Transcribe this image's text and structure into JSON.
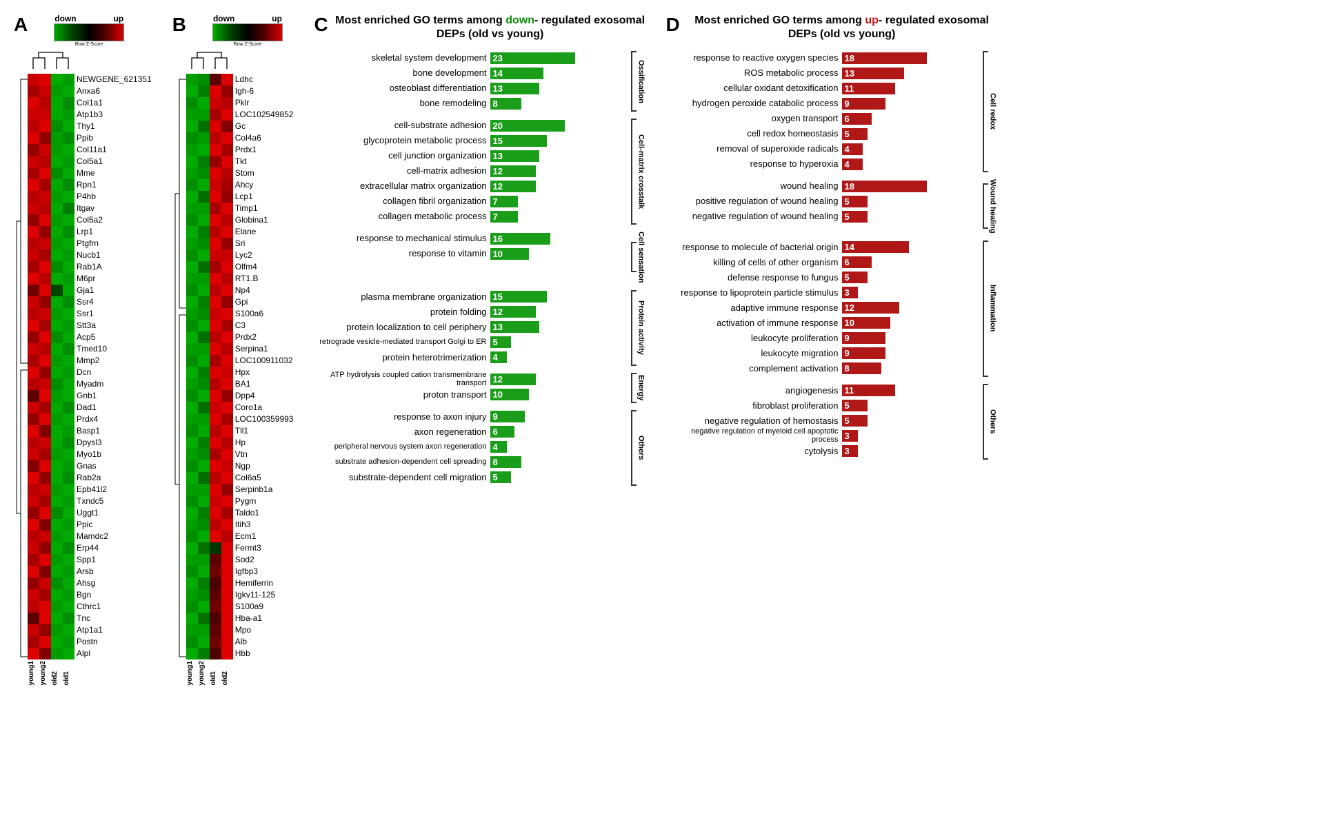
{
  "colors": {
    "heatmap_low": "#00aa00",
    "heatmap_mid": "#000000",
    "heatmap_high": "#dd0000",
    "bar_down": "#1a9e1a",
    "bar_up": "#b01818",
    "background": "#ffffff",
    "text": "#000000"
  },
  "panel_labels": {
    "A": "A",
    "B": "B",
    "C": "C",
    "D": "D"
  },
  "color_key": {
    "down_label": "down",
    "up_label": "up",
    "axis_label": "Row Z-Score",
    "ticks": [
      "-1",
      "-0.5",
      "0",
      "0.5",
      "1"
    ]
  },
  "heatmap_A": {
    "samples": [
      "young1",
      "young2",
      "old2",
      "old1"
    ],
    "genes": [
      "NEWGENE_621351",
      "Anxa6",
      "Col1a1",
      "Atp1b3",
      "Thy1",
      "Ppib",
      "Col11a1",
      "Col5a1",
      "Mme",
      "Rpn1",
      "P4hb",
      "Itgav",
      "Col5a2",
      "Lrp1",
      "Ptgfrn",
      "Nucb1",
      "Rab1A",
      "M6pr",
      "Gja1",
      "Ssr4",
      "Ssr1",
      "Stt3a",
      "Acp5",
      "Tmed10",
      "Mmp2",
      "Dcn",
      "Myadm",
      "Gnb1",
      "Dad1",
      "Prdx4",
      "Basp1",
      "Dpysl3",
      "Myo1b",
      "Gnas",
      "Rab2a",
      "Epb41l2",
      "Txndc5",
      "Uggt1",
      "Ppic",
      "Mamdc2",
      "Erp44",
      "Spp1",
      "Arsb",
      "Ahsg",
      "Bgn",
      "Cthrc1",
      "Tnc",
      "Atp1a1",
      "Postn",
      "Alpl"
    ],
    "values": [
      [
        0.9,
        1.0,
        -1.0,
        -0.9
      ],
      [
        0.7,
        0.9,
        -0.9,
        -1.0
      ],
      [
        1.0,
        0.8,
        -1.0,
        -0.8
      ],
      [
        0.9,
        0.9,
        -1.0,
        -0.9
      ],
      [
        0.8,
        1.0,
        -0.8,
        -1.0
      ],
      [
        1.0,
        0.6,
        -0.9,
        -0.8
      ],
      [
        0.6,
        0.9,
        -0.9,
        -1.0
      ],
      [
        0.9,
        0.8,
        -1.0,
        -0.9
      ],
      [
        0.7,
        1.0,
        -0.8,
        -1.0
      ],
      [
        1.0,
        0.7,
        -1.0,
        -0.8
      ],
      [
        0.8,
        0.9,
        -0.9,
        -1.0
      ],
      [
        0.9,
        0.8,
        -1.0,
        -0.7
      ],
      [
        0.6,
        1.0,
        -0.9,
        -1.0
      ],
      [
        1.0,
        0.6,
        -1.0,
        -0.8
      ],
      [
        0.8,
        0.9,
        -0.9,
        -1.0
      ],
      [
        0.9,
        0.7,
        -1.0,
        -0.9
      ],
      [
        0.7,
        1.0,
        -0.8,
        -1.0
      ],
      [
        1.0,
        0.8,
        -1.0,
        -0.9
      ],
      [
        0.4,
        1.0,
        -0.3,
        -1.0
      ],
      [
        0.9,
        0.6,
        -1.0,
        -0.8
      ],
      [
        0.8,
        0.9,
        -0.9,
        -1.0
      ],
      [
        1.0,
        0.7,
        -1.0,
        -0.9
      ],
      [
        0.6,
        1.0,
        -0.8,
        -1.0
      ],
      [
        0.9,
        0.8,
        -1.0,
        -0.8
      ],
      [
        0.7,
        1.0,
        -0.9,
        -1.0
      ],
      [
        1.0,
        0.6,
        -1.0,
        -0.9
      ],
      [
        0.8,
        0.9,
        -0.8,
        -1.0
      ],
      [
        0.3,
        1.0,
        -0.9,
        -1.0
      ],
      [
        0.9,
        0.7,
        -1.0,
        -0.8
      ],
      [
        0.6,
        1.0,
        -0.9,
        -1.0
      ],
      [
        1.0,
        0.5,
        -1.0,
        -0.9
      ],
      [
        0.8,
        0.9,
        -1.0,
        -0.8
      ],
      [
        0.9,
        0.7,
        -0.9,
        -1.0
      ],
      [
        0.5,
        1.0,
        -1.0,
        -0.9
      ],
      [
        1.0,
        0.6,
        -1.0,
        -0.8
      ],
      [
        0.8,
        0.9,
        -0.9,
        -1.0
      ],
      [
        0.9,
        0.7,
        -1.0,
        -0.9
      ],
      [
        0.6,
        1.0,
        -0.8,
        -1.0
      ],
      [
        1.0,
        0.5,
        -1.0,
        -0.9
      ],
      [
        0.8,
        0.9,
        -0.9,
        -1.0
      ],
      [
        0.9,
        0.6,
        -1.0,
        -0.8
      ],
      [
        0.7,
        1.0,
        -0.9,
        -1.0
      ],
      [
        1.0,
        0.5,
        -1.0,
        -0.9
      ],
      [
        0.6,
        0.9,
        -0.8,
        -1.0
      ],
      [
        0.9,
        0.7,
        -1.0,
        -0.9
      ],
      [
        0.8,
        1.0,
        -0.9,
        -1.0
      ],
      [
        0.3,
        1.0,
        -1.0,
        -0.8
      ],
      [
        0.9,
        0.6,
        -0.9,
        -1.0
      ],
      [
        0.7,
        1.0,
        -1.0,
        -0.9
      ],
      [
        1.0,
        0.5,
        -0.9,
        -1.0
      ]
    ]
  },
  "heatmap_B": {
    "samples": [
      "young1",
      "young2",
      "old1",
      "old2"
    ],
    "genes": [
      "Ldhc",
      "Igh-6",
      "Pklr",
      "LOC102549852",
      "Gc",
      "Col4a6",
      "Prdx1",
      "Tkt",
      "Stom",
      "Ahcy",
      "Lcp1",
      "Timp1",
      "Globina1",
      "Elane",
      "Sri",
      "Lyc2",
      "Olfm4",
      "RT1.B",
      "Np4",
      "Gpi",
      "S100a6",
      "C3",
      "Prdx2",
      "Serpina1",
      "LOC100911032",
      "Hpx",
      "BA1",
      "Dpp4",
      "Coro1a",
      "LOC100359993",
      "Tll1",
      "Hp",
      "Vtn",
      "Ngp",
      "Col6a5",
      "Serpinb1a",
      "Pygm",
      "Taldo1",
      "Itih3",
      "Ecm1",
      "Fermt3",
      "Sod2",
      "Igfbp3",
      "Hemiferrin",
      "Igkv11-125",
      "S100a9",
      "Hba-a1",
      "Mpo",
      "Alb",
      "Hbb"
    ],
    "values": [
      [
        -0.9,
        -0.8,
        0.3,
        1.0
      ],
      [
        -1.0,
        -0.7,
        1.0,
        0.6
      ],
      [
        -0.8,
        -1.0,
        0.9,
        0.8
      ],
      [
        -0.9,
        -0.9,
        0.7,
        1.0
      ],
      [
        -1.0,
        -0.6,
        1.0,
        0.5
      ],
      [
        -0.8,
        -0.9,
        0.8,
        1.0
      ],
      [
        -0.9,
        -1.0,
        1.0,
        0.7
      ],
      [
        -1.0,
        -0.7,
        0.6,
        1.0
      ],
      [
        -0.9,
        -0.8,
        1.0,
        0.8
      ],
      [
        -0.8,
        -1.0,
        0.9,
        0.7
      ],
      [
        -1.0,
        -0.6,
        1.0,
        0.6
      ],
      [
        -0.9,
        -0.9,
        0.7,
        1.0
      ],
      [
        -0.8,
        -1.0,
        1.0,
        0.8
      ],
      [
        -1.0,
        -0.7,
        0.8,
        1.0
      ],
      [
        -0.9,
        -0.8,
        1.0,
        0.6
      ],
      [
        -0.8,
        -1.0,
        0.9,
        0.9
      ],
      [
        -1.0,
        -0.6,
        0.7,
        1.0
      ],
      [
        -0.9,
        -0.9,
        1.0,
        0.8
      ],
      [
        -0.8,
        -1.0,
        0.8,
        1.0
      ],
      [
        -1.0,
        -0.7,
        1.0,
        0.6
      ],
      [
        -0.9,
        -0.8,
        0.9,
        1.0
      ],
      [
        -0.8,
        -1.0,
        1.0,
        0.7
      ],
      [
        -1.0,
        -0.6,
        0.8,
        1.0
      ],
      [
        -0.9,
        -0.9,
        1.0,
        0.8
      ],
      [
        -0.8,
        -1.0,
        0.7,
        1.0
      ],
      [
        -1.0,
        -0.7,
        1.0,
        0.9
      ],
      [
        -0.9,
        -0.8,
        0.8,
        1.0
      ],
      [
        -0.8,
        -1.0,
        1.0,
        0.6
      ],
      [
        -1.0,
        -0.6,
        0.9,
        1.0
      ],
      [
        -0.9,
        -0.9,
        1.0,
        0.7
      ],
      [
        -0.8,
        -1.0,
        0.8,
        1.0
      ],
      [
        -1.0,
        -0.7,
        1.0,
        0.8
      ],
      [
        -0.9,
        -0.8,
        0.7,
        1.0
      ],
      [
        -0.8,
        -1.0,
        1.0,
        0.9
      ],
      [
        -1.0,
        -0.6,
        0.8,
        1.0
      ],
      [
        -0.9,
        -0.9,
        1.0,
        0.6
      ],
      [
        -0.8,
        -1.0,
        0.9,
        1.0
      ],
      [
        -1.0,
        -0.7,
        1.0,
        0.7
      ],
      [
        -0.9,
        -0.8,
        0.8,
        1.0
      ],
      [
        -0.8,
        -1.0,
        1.0,
        0.8
      ],
      [
        -1.0,
        -0.6,
        -0.2,
        1.0
      ],
      [
        -0.9,
        -0.9,
        0.3,
        1.0
      ],
      [
        -0.8,
        -1.0,
        0.4,
        1.0
      ],
      [
        -1.0,
        -0.7,
        0.2,
        1.0
      ],
      [
        -0.9,
        -0.8,
        0.3,
        1.0
      ],
      [
        -0.8,
        -1.0,
        0.4,
        1.0
      ],
      [
        -1.0,
        -0.6,
        0.2,
        1.0
      ],
      [
        -0.9,
        -0.9,
        0.3,
        1.0
      ],
      [
        -0.8,
        -1.0,
        0.4,
        1.0
      ],
      [
        -1.0,
        -0.7,
        0.2,
        1.0
      ]
    ]
  },
  "panel_C": {
    "title_pre": "Most enriched GO terms among ",
    "title_word": "down",
    "title_post": "-\nregulated exosomal DEPs (old vs young)",
    "max_value": 23,
    "groups": [
      {
        "name": "Ossification",
        "bars": [
          {
            "label": "skeletal system development",
            "value": 23
          },
          {
            "label": "bone development",
            "value": 14
          },
          {
            "label": "osteoblast differentiation",
            "value": 13
          },
          {
            "label": "bone remodeling",
            "value": 8
          }
        ]
      },
      {
        "name": "Cell-matrix crosstalk",
        "bars": [
          {
            "label": "cell-substrate adhesion",
            "value": 20
          },
          {
            "label": "glycoprotein metabolic process",
            "value": 15
          },
          {
            "label": "cell junction organization",
            "value": 13
          },
          {
            "label": "cell-matrix adhesion",
            "value": 12
          },
          {
            "label": "extracellular matrix organization",
            "value": 12
          },
          {
            "label": "collagen fibril organization",
            "value": 7
          },
          {
            "label": "collagen metabolic process",
            "value": 7
          }
        ]
      },
      {
        "name": "Cell sensation",
        "bars": [
          {
            "label": "response to mechanical stimulus",
            "value": 16
          },
          {
            "label": "response to vitamin",
            "value": 10
          }
        ]
      },
      {
        "name": "Protein activity",
        "bars": [
          {
            "label": "plasma membrane organization",
            "value": 15
          },
          {
            "label": "protein folding",
            "value": 12
          },
          {
            "label": "protein localization to cell periphery",
            "value": 13
          },
          {
            "label": "retrograde vesicle-mediated transport Golgi to ER",
            "value": 5,
            "small": true
          },
          {
            "label": "protein heterotrimerization",
            "value": 4
          }
        ]
      },
      {
        "name": "Energy",
        "bars": [
          {
            "label": "ATP hydrolysis coupled cation transmembrane transport",
            "value": 12,
            "small": true
          },
          {
            "label": "proton transport",
            "value": 10
          }
        ]
      },
      {
        "name": "Others",
        "bars": [
          {
            "label": "response to axon injury",
            "value": 9
          },
          {
            "label": "axon regeneration",
            "value": 6
          },
          {
            "label": "peripheral nervous system axon regeneration",
            "value": 4,
            "small": true
          },
          {
            "label": "substrate adhesion-dependent cell spreading",
            "value": 8,
            "small": true
          },
          {
            "label": "substrate-dependent cell migration",
            "value": 5
          }
        ]
      }
    ]
  },
  "panel_D": {
    "title_pre": "Most enriched GO terms among ",
    "title_word": "up",
    "title_post": "-\nregulated exosomal DEPs (old vs young)",
    "max_value": 18,
    "groups": [
      {
        "name": "Cell redox",
        "bars": [
          {
            "label": "response to reactive oxygen species",
            "value": 18
          },
          {
            "label": "ROS metabolic process",
            "value": 13
          },
          {
            "label": "cellular oxidant detoxification",
            "value": 11
          },
          {
            "label": "hydrogen peroxide catabolic process",
            "value": 9
          },
          {
            "label": "oxygen transport",
            "value": 6
          },
          {
            "label": "cell redox homeostasis",
            "value": 5
          },
          {
            "label": "removal of superoxide radicals",
            "value": 4
          },
          {
            "label": "response to hyperoxia",
            "value": 4
          }
        ]
      },
      {
        "name": "Wound healing",
        "bars": [
          {
            "label": "wound healing",
            "value": 18
          },
          {
            "label": "positive regulation of wound healing",
            "value": 5
          },
          {
            "label": "negative regulation of wound healing",
            "value": 5
          }
        ]
      },
      {
        "name": "Inflammation",
        "bars": [
          {
            "label": "response to molecule of bacterial origin",
            "value": 14
          },
          {
            "label": "killing of cells of other organism",
            "value": 6
          },
          {
            "label": "defense response to fungus",
            "value": 5
          },
          {
            "label": "response to lipoprotein particle stimulus",
            "value": 3
          },
          {
            "label": "adaptive immune response",
            "value": 12
          },
          {
            "label": "activation of immune response",
            "value": 10
          },
          {
            "label": "leukocyte proliferation",
            "value": 9
          },
          {
            "label": "leukocyte migration",
            "value": 9
          },
          {
            "label": "complement activation",
            "value": 8
          }
        ]
      },
      {
        "name": "Others",
        "bars": [
          {
            "label": "angiogenesis",
            "value": 11
          },
          {
            "label": "fibroblast proliferation",
            "value": 5
          },
          {
            "label": "negative regulation of hemostasis",
            "value": 5
          },
          {
            "label": "negative regulation of myeloid cell apoptotic process",
            "value": 3,
            "small": true
          },
          {
            "label": "cytolysis",
            "value": 3
          }
        ]
      }
    ]
  }
}
